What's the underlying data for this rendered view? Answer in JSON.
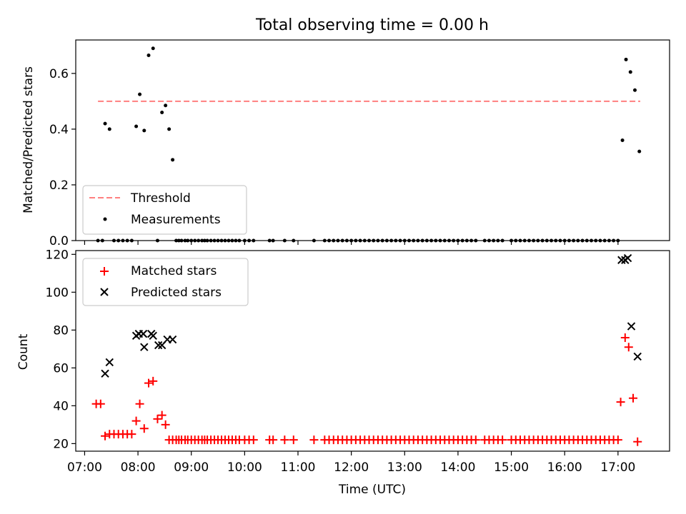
{
  "chart_data": [
    {
      "type": "scatter",
      "title": "Total observing time = 0.00 h",
      "xlabel": "",
      "ylabel": "Matched/Predicted stars",
      "xlim": [
        "06:50",
        "17:58"
      ],
      "ylim": [
        0,
        0.72
      ],
      "yticks": [
        "0.0",
        "0.2",
        "0.4",
        "0.6"
      ],
      "grid": false,
      "legend_position": "lower-left",
      "threshold": {
        "name": "Threshold",
        "value": 0.5,
        "x_range": [
          "07:15",
          "17:25"
        ],
        "color": "#ff7f7f"
      },
      "series": [
        {
          "name": "Measurements",
          "color": "#000000",
          "points": [
            [
              "07:15",
              0
            ],
            [
              "07:20",
              0
            ],
            [
              "07:23",
              0.42
            ],
            [
              "07:28",
              0.4
            ],
            [
              "07:33",
              0
            ],
            [
              "07:38",
              0
            ],
            [
              "07:43",
              0
            ],
            [
              "07:48",
              0
            ],
            [
              "07:53",
              0
            ],
            [
              "07:58",
              0.41
            ],
            [
              "08:02",
              0.525
            ],
            [
              "08:07",
              0.395
            ],
            [
              "08:12",
              0.665
            ],
            [
              "08:17",
              0.69
            ],
            [
              "08:22",
              0
            ],
            [
              "08:27",
              0.46
            ],
            [
              "08:31",
              0.485
            ],
            [
              "08:35",
              0.4
            ],
            [
              "08:39",
              0.29
            ],
            [
              "08:43",
              0
            ],
            [
              "08:46",
              0
            ],
            [
              "08:49",
              0
            ],
            [
              "08:53",
              0
            ],
            [
              "08:56",
              0
            ],
            [
              "09:00",
              0
            ],
            [
              "09:04",
              0
            ],
            [
              "09:08",
              0
            ],
            [
              "09:12",
              0
            ],
            [
              "09:15",
              0
            ],
            [
              "09:18",
              0
            ],
            [
              "09:22",
              0
            ],
            [
              "09:26",
              0
            ],
            [
              "09:30",
              0
            ],
            [
              "09:34",
              0
            ],
            [
              "09:38",
              0
            ],
            [
              "09:42",
              0
            ],
            [
              "09:46",
              0
            ],
            [
              "09:50",
              0
            ],
            [
              "09:54",
              0
            ],
            [
              "10:00",
              0
            ],
            [
              "10:05",
              0
            ],
            [
              "10:10",
              0
            ],
            [
              "10:28",
              0
            ],
            [
              "10:32",
              0
            ],
            [
              "10:45",
              0
            ],
            [
              "10:55",
              0
            ],
            [
              "11:18",
              0
            ],
            [
              "11:30",
              0
            ],
            [
              "11:35",
              0
            ],
            [
              "11:40",
              0
            ],
            [
              "11:45",
              0
            ],
            [
              "11:50",
              0
            ],
            [
              "11:55",
              0
            ],
            [
              "12:00",
              0
            ],
            [
              "12:05",
              0
            ],
            [
              "12:10",
              0
            ],
            [
              "12:15",
              0
            ],
            [
              "12:20",
              0
            ],
            [
              "12:25",
              0
            ],
            [
              "12:30",
              0
            ],
            [
              "12:35",
              0
            ],
            [
              "12:40",
              0
            ],
            [
              "12:45",
              0
            ],
            [
              "12:50",
              0
            ],
            [
              "12:55",
              0
            ],
            [
              "13:00",
              0
            ],
            [
              "13:05",
              0
            ],
            [
              "13:10",
              0
            ],
            [
              "13:15",
              0
            ],
            [
              "13:20",
              0
            ],
            [
              "13:25",
              0
            ],
            [
              "13:30",
              0
            ],
            [
              "13:35",
              0
            ],
            [
              "13:40",
              0
            ],
            [
              "13:45",
              0
            ],
            [
              "13:50",
              0
            ],
            [
              "13:55",
              0
            ],
            [
              "14:00",
              0
            ],
            [
              "14:05",
              0
            ],
            [
              "14:10",
              0
            ],
            [
              "14:15",
              0
            ],
            [
              "14:20",
              0
            ],
            [
              "14:30",
              0
            ],
            [
              "14:35",
              0
            ],
            [
              "14:40",
              0
            ],
            [
              "14:45",
              0
            ],
            [
              "14:50",
              0
            ],
            [
              "15:00",
              0
            ],
            [
              "15:05",
              0
            ],
            [
              "15:10",
              0
            ],
            [
              "15:15",
              0
            ],
            [
              "15:20",
              0
            ],
            [
              "15:25",
              0
            ],
            [
              "15:30",
              0
            ],
            [
              "15:35",
              0
            ],
            [
              "15:40",
              0
            ],
            [
              "15:45",
              0
            ],
            [
              "15:50",
              0
            ],
            [
              "15:55",
              0
            ],
            [
              "16:00",
              0
            ],
            [
              "16:05",
              0
            ],
            [
              "16:10",
              0
            ],
            [
              "16:15",
              0
            ],
            [
              "16:20",
              0
            ],
            [
              "16:25",
              0
            ],
            [
              "16:30",
              0
            ],
            [
              "16:35",
              0
            ],
            [
              "16:40",
              0
            ],
            [
              "16:45",
              0
            ],
            [
              "16:50",
              0
            ],
            [
              "16:55",
              0
            ],
            [
              "17:00",
              0
            ],
            [
              "17:05",
              0.36
            ],
            [
              "17:09",
              0.65
            ],
            [
              "17:14",
              0.605
            ],
            [
              "17:19",
              0.54
            ],
            [
              "17:24",
              0.32
            ]
          ]
        }
      ]
    },
    {
      "type": "scatter",
      "title": "",
      "xlabel": "Time (UTC)",
      "ylabel": "Count",
      "xlim": [
        "06:50",
        "17:58"
      ],
      "ylim": [
        16,
        122
      ],
      "xticks": [
        "07:00",
        "08:00",
        "09:00",
        "10:00",
        "11:00",
        "12:00",
        "13:00",
        "14:00",
        "15:00",
        "16:00",
        "17:00"
      ],
      "yticks": [
        "20",
        "40",
        "60",
        "80",
        "100",
        "120"
      ],
      "grid": false,
      "legend_position": "upper-left",
      "series": [
        {
          "name": "Matched stars",
          "marker": "+",
          "color": "#ff0000",
          "points": [
            [
              "07:13",
              41
            ],
            [
              "07:18",
              41
            ],
            [
              "07:23",
              24
            ],
            [
              "07:28",
              25
            ],
            [
              "07:33",
              25
            ],
            [
              "07:38",
              25
            ],
            [
              "07:43",
              25
            ],
            [
              "07:48",
              25
            ],
            [
              "07:53",
              25
            ],
            [
              "07:58",
              32
            ],
            [
              "08:02",
              41
            ],
            [
              "08:07",
              28
            ],
            [
              "08:12",
              52
            ],
            [
              "08:17",
              53
            ],
            [
              "08:22",
              33
            ],
            [
              "08:27",
              35
            ],
            [
              "08:31",
              30
            ],
            [
              "08:35",
              22
            ],
            [
              "08:39",
              22
            ],
            [
              "08:43",
              22
            ],
            [
              "08:46",
              22
            ],
            [
              "08:49",
              22
            ],
            [
              "08:53",
              22
            ],
            [
              "08:56",
              22
            ],
            [
              "09:00",
              22
            ],
            [
              "09:04",
              22
            ],
            [
              "09:08",
              22
            ],
            [
              "09:12",
              22
            ],
            [
              "09:15",
              22
            ],
            [
              "09:18",
              22
            ],
            [
              "09:22",
              22
            ],
            [
              "09:26",
              22
            ],
            [
              "09:30",
              22
            ],
            [
              "09:34",
              22
            ],
            [
              "09:38",
              22
            ],
            [
              "09:42",
              22
            ],
            [
              "09:46",
              22
            ],
            [
              "09:50",
              22
            ],
            [
              "09:54",
              22
            ],
            [
              "10:00",
              22
            ],
            [
              "10:05",
              22
            ],
            [
              "10:10",
              22
            ],
            [
              "10:28",
              22
            ],
            [
              "10:32",
              22
            ],
            [
              "10:45",
              22
            ],
            [
              "10:55",
              22
            ],
            [
              "11:18",
              22
            ],
            [
              "11:30",
              22
            ],
            [
              "11:35",
              22
            ],
            [
              "11:40",
              22
            ],
            [
              "11:45",
              22
            ],
            [
              "11:50",
              22
            ],
            [
              "11:55",
              22
            ],
            [
              "12:00",
              22
            ],
            [
              "12:05",
              22
            ],
            [
              "12:10",
              22
            ],
            [
              "12:15",
              22
            ],
            [
              "12:20",
              22
            ],
            [
              "12:25",
              22
            ],
            [
              "12:30",
              22
            ],
            [
              "12:35",
              22
            ],
            [
              "12:40",
              22
            ],
            [
              "12:45",
              22
            ],
            [
              "12:50",
              22
            ],
            [
              "12:55",
              22
            ],
            [
              "13:00",
              22
            ],
            [
              "13:05",
              22
            ],
            [
              "13:10",
              22
            ],
            [
              "13:15",
              22
            ],
            [
              "13:20",
              22
            ],
            [
              "13:25",
              22
            ],
            [
              "13:30",
              22
            ],
            [
              "13:35",
              22
            ],
            [
              "13:40",
              22
            ],
            [
              "13:45",
              22
            ],
            [
              "13:50",
              22
            ],
            [
              "13:55",
              22
            ],
            [
              "14:00",
              22
            ],
            [
              "14:05",
              22
            ],
            [
              "14:10",
              22
            ],
            [
              "14:15",
              22
            ],
            [
              "14:20",
              22
            ],
            [
              "14:30",
              22
            ],
            [
              "14:35",
              22
            ],
            [
              "14:40",
              22
            ],
            [
              "14:45",
              22
            ],
            [
              "14:50",
              22
            ],
            [
              "15:00",
              22
            ],
            [
              "15:05",
              22
            ],
            [
              "15:10",
              22
            ],
            [
              "15:15",
              22
            ],
            [
              "15:20",
              22
            ],
            [
              "15:25",
              22
            ],
            [
              "15:30",
              22
            ],
            [
              "15:35",
              22
            ],
            [
              "15:40",
              22
            ],
            [
              "15:45",
              22
            ],
            [
              "15:50",
              22
            ],
            [
              "15:55",
              22
            ],
            [
              "16:00",
              22
            ],
            [
              "16:05",
              22
            ],
            [
              "16:10",
              22
            ],
            [
              "16:15",
              22
            ],
            [
              "16:20",
              22
            ],
            [
              "16:25",
              22
            ],
            [
              "16:30",
              22
            ],
            [
              "16:35",
              22
            ],
            [
              "16:40",
              22
            ],
            [
              "16:45",
              22
            ],
            [
              "16:50",
              22
            ],
            [
              "16:55",
              22
            ],
            [
              "17:00",
              22
            ],
            [
              "17:03",
              42
            ],
            [
              "17:08",
              76
            ],
            [
              "17:12",
              71
            ],
            [
              "17:17",
              44
            ],
            [
              "17:22",
              21
            ]
          ]
        },
        {
          "name": "Predicted stars",
          "marker": "x",
          "color": "#000000",
          "points": [
            [
              "07:23",
              57
            ],
            [
              "07:28",
              63
            ],
            [
              "07:58",
              77
            ],
            [
              "08:01",
              78
            ],
            [
              "08:06",
              78
            ],
            [
              "08:07",
              71
            ],
            [
              "08:15",
              78
            ],
            [
              "08:17",
              77
            ],
            [
              "08:23",
              72
            ],
            [
              "08:27",
              72
            ],
            [
              "08:33",
              75
            ],
            [
              "08:39",
              75
            ],
            [
              "17:04",
              117
            ],
            [
              "17:08",
              117
            ],
            [
              "17:11",
              118
            ],
            [
              "17:15",
              82
            ],
            [
              "17:22",
              66
            ]
          ]
        }
      ]
    }
  ]
}
